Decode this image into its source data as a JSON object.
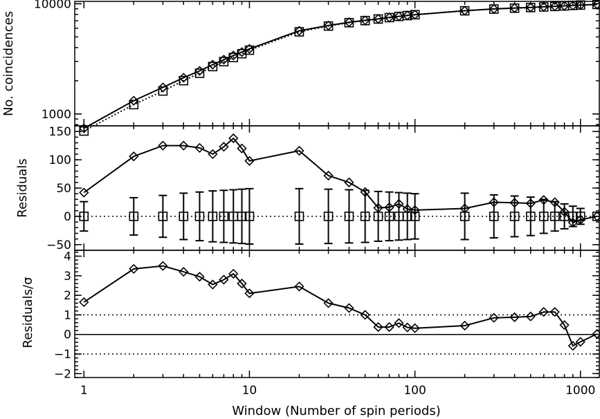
{
  "chart_data": {
    "xlabel": "Window (Number of spin periods)",
    "xscale": "log",
    "xlim": [
      0.88,
      1300
    ],
    "x_ticks": [
      {
        "value": 1,
        "label": "1"
      },
      {
        "value": 10,
        "label": "10"
      },
      {
        "value": 100,
        "label": "100"
      },
      {
        "value": 1000,
        "label": "1000"
      }
    ],
    "x": [
      1,
      2,
      3,
      4,
      5,
      6,
      7,
      8,
      9,
      10,
      20,
      30,
      40,
      50,
      60,
      70,
      80,
      90,
      100,
      200,
      300,
      400,
      500,
      600,
      700,
      800,
      900,
      1000,
      1260
    ],
    "panels": [
      {
        "type": "line",
        "ylabel": "No. coincidences",
        "yscale": "log",
        "ylim": [
          780,
          10500
        ],
        "y_ticks": [
          {
            "value": 1000,
            "label": "1000"
          },
          {
            "value": 10000,
            "label": "10000"
          }
        ],
        "series": [
          {
            "marker": "diamond",
            "line": "solid",
            "values": [
              740,
              1320,
              1740,
              2130,
              2460,
              2800,
              3110,
              3390,
              3640,
              3890,
              5680,
              6340,
              6790,
              7070,
              7280,
              7500,
              7690,
              7830,
              7960,
              8640,
              8970,
              9140,
              9260,
              9380,
              9470,
              9560,
              9640,
              9710,
              9860
            ]
          },
          {
            "marker": "square",
            "line": "dotted",
            "values": [
              700,
              1215,
              1615,
              2005,
              2340,
              2690,
              2985,
              3250,
              3520,
              3790,
              5560,
              6270,
              6730,
              7030,
              7265,
              7485,
              7670,
              7810,
              7950,
              8625,
              8945,
              9115,
              9235,
              9350,
              9445,
              9550,
              9655,
              9720,
              9860
            ]
          }
        ]
      },
      {
        "type": "line",
        "ylabel": "Residuals",
        "yscale": "linear",
        "ylim": [
          -60,
          160
        ],
        "y_ticks": [
          {
            "value": -50,
            "label": "−50"
          },
          {
            "value": 0,
            "label": "0"
          },
          {
            "value": 50,
            "label": "50"
          },
          {
            "value": 100,
            "label": "100"
          },
          {
            "value": 150,
            "label": "150"
          }
        ],
        "minor_step": 10,
        "reference_line": {
          "y": 0,
          "style": "dotted"
        },
        "series": [
          {
            "marker": "diamond",
            "line": "solid",
            "values": [
              42,
              106,
              125,
              125,
              121,
              110,
              123,
              138,
              120,
              98,
              116,
              72,
              60,
              43,
              15,
              16,
              22,
              13,
              11,
              14,
              25,
              24,
              23,
              29,
              25,
              8,
              -11,
              -6,
              0
            ]
          },
          {
            "marker": "square",
            "line": "none",
            "values": [
              0,
              0,
              0,
              0,
              0,
              0,
              0,
              0,
              0,
              0,
              0,
              0,
              0,
              0,
              0,
              0,
              0,
              0,
              0,
              0,
              0,
              0,
              0,
              0,
              0,
              0,
              0,
              0,
              0
            ],
            "errors": [
              26,
              33,
              37,
              41,
              43,
              45,
              46,
              47,
              48,
              49,
              49,
              48,
              47,
              46,
              44,
              43,
              42,
              41,
              40,
              41,
              38,
              36,
              34,
              30,
              26,
              22,
              18,
              14,
              0
            ]
          }
        ]
      },
      {
        "type": "line",
        "ylabel": "Residuals/σ",
        "yscale": "linear",
        "ylim": [
          -2.2,
          4.3
        ],
        "y_ticks": [
          {
            "value": -2,
            "label": "−2"
          },
          {
            "value": -1,
            "label": "−1"
          },
          {
            "value": 0,
            "label": "0"
          },
          {
            "value": 1,
            "label": "1"
          },
          {
            "value": 2,
            "label": "2"
          },
          {
            "value": 3,
            "label": "3"
          },
          {
            "value": 4,
            "label": "4"
          }
        ],
        "minor_step": 0.2,
        "reference_lines": [
          {
            "y": 1,
            "style": "dotted"
          },
          {
            "y": 0,
            "style": "solid"
          },
          {
            "y": -1,
            "style": "dotted"
          }
        ],
        "series": [
          {
            "marker": "diamond",
            "line": "solid",
            "values": [
              1.65,
              3.35,
              3.5,
              3.2,
              2.95,
              2.55,
              2.8,
              3.1,
              2.6,
              2.1,
              2.45,
              1.6,
              1.35,
              1.0,
              0.38,
              0.38,
              0.58,
              0.36,
              0.32,
              0.45,
              0.85,
              0.88,
              0.92,
              1.15,
              1.15,
              0.48,
              -0.58,
              -0.38,
              0.03
            ]
          }
        ]
      }
    ]
  }
}
